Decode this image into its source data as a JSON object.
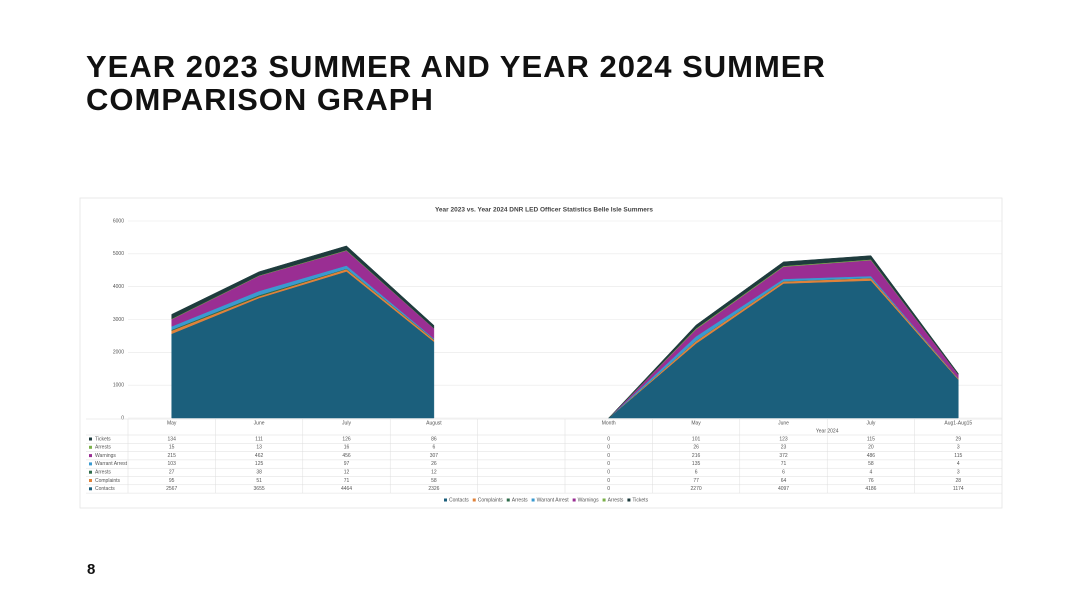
{
  "header": {
    "title": "YEAR 2023 SUMMER AND YEAR 2024 SUMMER COMPARISON GRAPH",
    "page_number": "8"
  },
  "chart_data": {
    "type": "stacked-area",
    "title": "Year 2023 vs. Year 2024 DNR LED Officer Statistics Belle Isle Summers",
    "categories": [
      "May",
      "June",
      "July",
      "August",
      null,
      "Month",
      "May",
      "June",
      "July",
      "Aug1-Aug15"
    ],
    "group_label": "Year 2024",
    "ylim": [
      0,
      6000
    ],
    "yticks": [
      0,
      1000,
      2000,
      3000,
      4000,
      5000,
      6000
    ],
    "grid": true,
    "series": [
      {
        "name": "Contacts",
        "color": "#1b5f7c",
        "values": [
          2567,
          3655,
          4464,
          2326,
          null,
          0,
          2270,
          4097,
          4186,
          1174
        ]
      },
      {
        "name": "Complaints",
        "color": "#e0823a",
        "values": [
          95,
          51,
          71,
          58,
          null,
          0,
          77,
          64,
          76,
          28
        ]
      },
      {
        "name": "Arrests",
        "color": "#2e6b4a",
        "values": [
          27,
          38,
          12,
          12,
          null,
          0,
          6,
          6,
          4,
          3
        ]
      },
      {
        "name": "Warrant Arrest",
        "color": "#3a9ad0",
        "values": [
          103,
          125,
          97,
          26,
          null,
          0,
          135,
          71,
          58,
          4
        ]
      },
      {
        "name": "Warnings",
        "color": "#9a2e93",
        "values": [
          215,
          462,
          456,
          307,
          null,
          0,
          216,
          372,
          486,
          115
        ]
      },
      {
        "name": "Arrests",
        "color": "#7bb04a",
        "values": [
          15,
          13,
          16,
          6,
          null,
          0,
          26,
          23,
          20,
          3
        ]
      },
      {
        "name": "Tickets",
        "color": "#1e3b3d",
        "values": [
          134,
          111,
          126,
          86,
          null,
          0,
          101,
          123,
          115,
          29
        ]
      }
    ]
  }
}
